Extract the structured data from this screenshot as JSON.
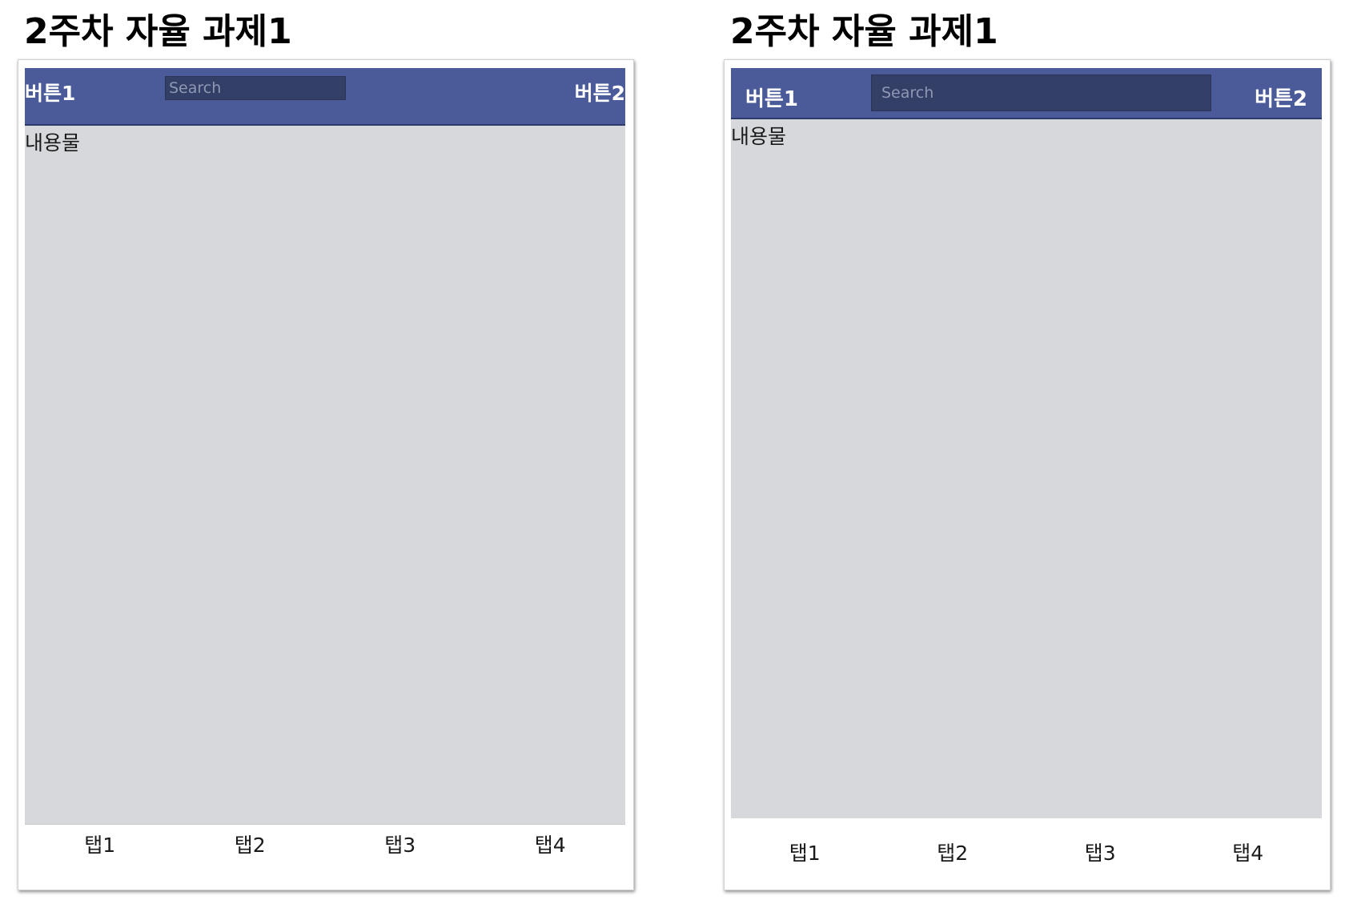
{
  "left_panel": {
    "title": "2주차 자율 과제1",
    "header": {
      "button1_label": "버튼1",
      "search_placeholder": "Search",
      "button2_label": "버튼2"
    },
    "content_label": "내용물",
    "tabs": [
      {
        "label": "탭1"
      },
      {
        "label": "탭2"
      },
      {
        "label": "탭3"
      },
      {
        "label": "탭4"
      }
    ]
  },
  "right_panel": {
    "title": "2주차 자율 과제1",
    "header": {
      "button1_label": "버튼1",
      "search_placeholder": "Search",
      "button2_label": "버튼2"
    },
    "content_label": "내용물",
    "tabs": [
      {
        "label": "탭1"
      },
      {
        "label": "탭2"
      },
      {
        "label": "탭3"
      },
      {
        "label": "탭4"
      }
    ]
  },
  "colors": {
    "header_bg": "#4b5b99",
    "search_bg": "#333f66",
    "content_bg": "#d7d8dc"
  }
}
